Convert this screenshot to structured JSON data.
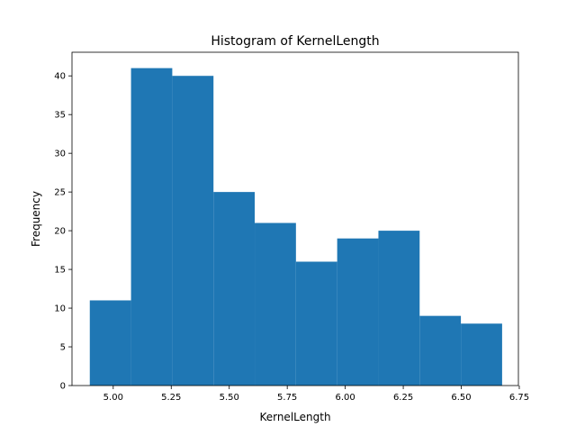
{
  "chart_data": {
    "type": "bar",
    "title": "Histogram of KernelLength",
    "xlabel": "KernelLength",
    "ylabel": "Frequency",
    "xlim": [
      4.8223,
      6.7462
    ],
    "ylim": [
      0,
      43.05
    ],
    "bin_edges": [
      4.899,
      5.0767,
      5.2544,
      5.4321,
      5.6098,
      5.7875,
      5.9652,
      6.1429,
      6.3206,
      6.4983,
      6.676
    ],
    "values": [
      11,
      41,
      40,
      25,
      21,
      16,
      19,
      20,
      9,
      8
    ],
    "xticks": [
      "5.00",
      "5.25",
      "5.50",
      "5.75",
      "6.00",
      "6.25",
      "6.50",
      "6.75"
    ],
    "xtick_values": [
      5.0,
      5.25,
      5.5,
      5.75,
      6.0,
      6.25,
      6.5,
      6.75
    ],
    "yticks": [
      "0",
      "5",
      "10",
      "15",
      "20",
      "25",
      "30",
      "35",
      "40"
    ],
    "ytick_values": [
      0,
      5,
      10,
      15,
      20,
      25,
      30,
      35,
      40
    ],
    "bar_color": "#1f77b4",
    "grid": false,
    "legend": "none"
  }
}
